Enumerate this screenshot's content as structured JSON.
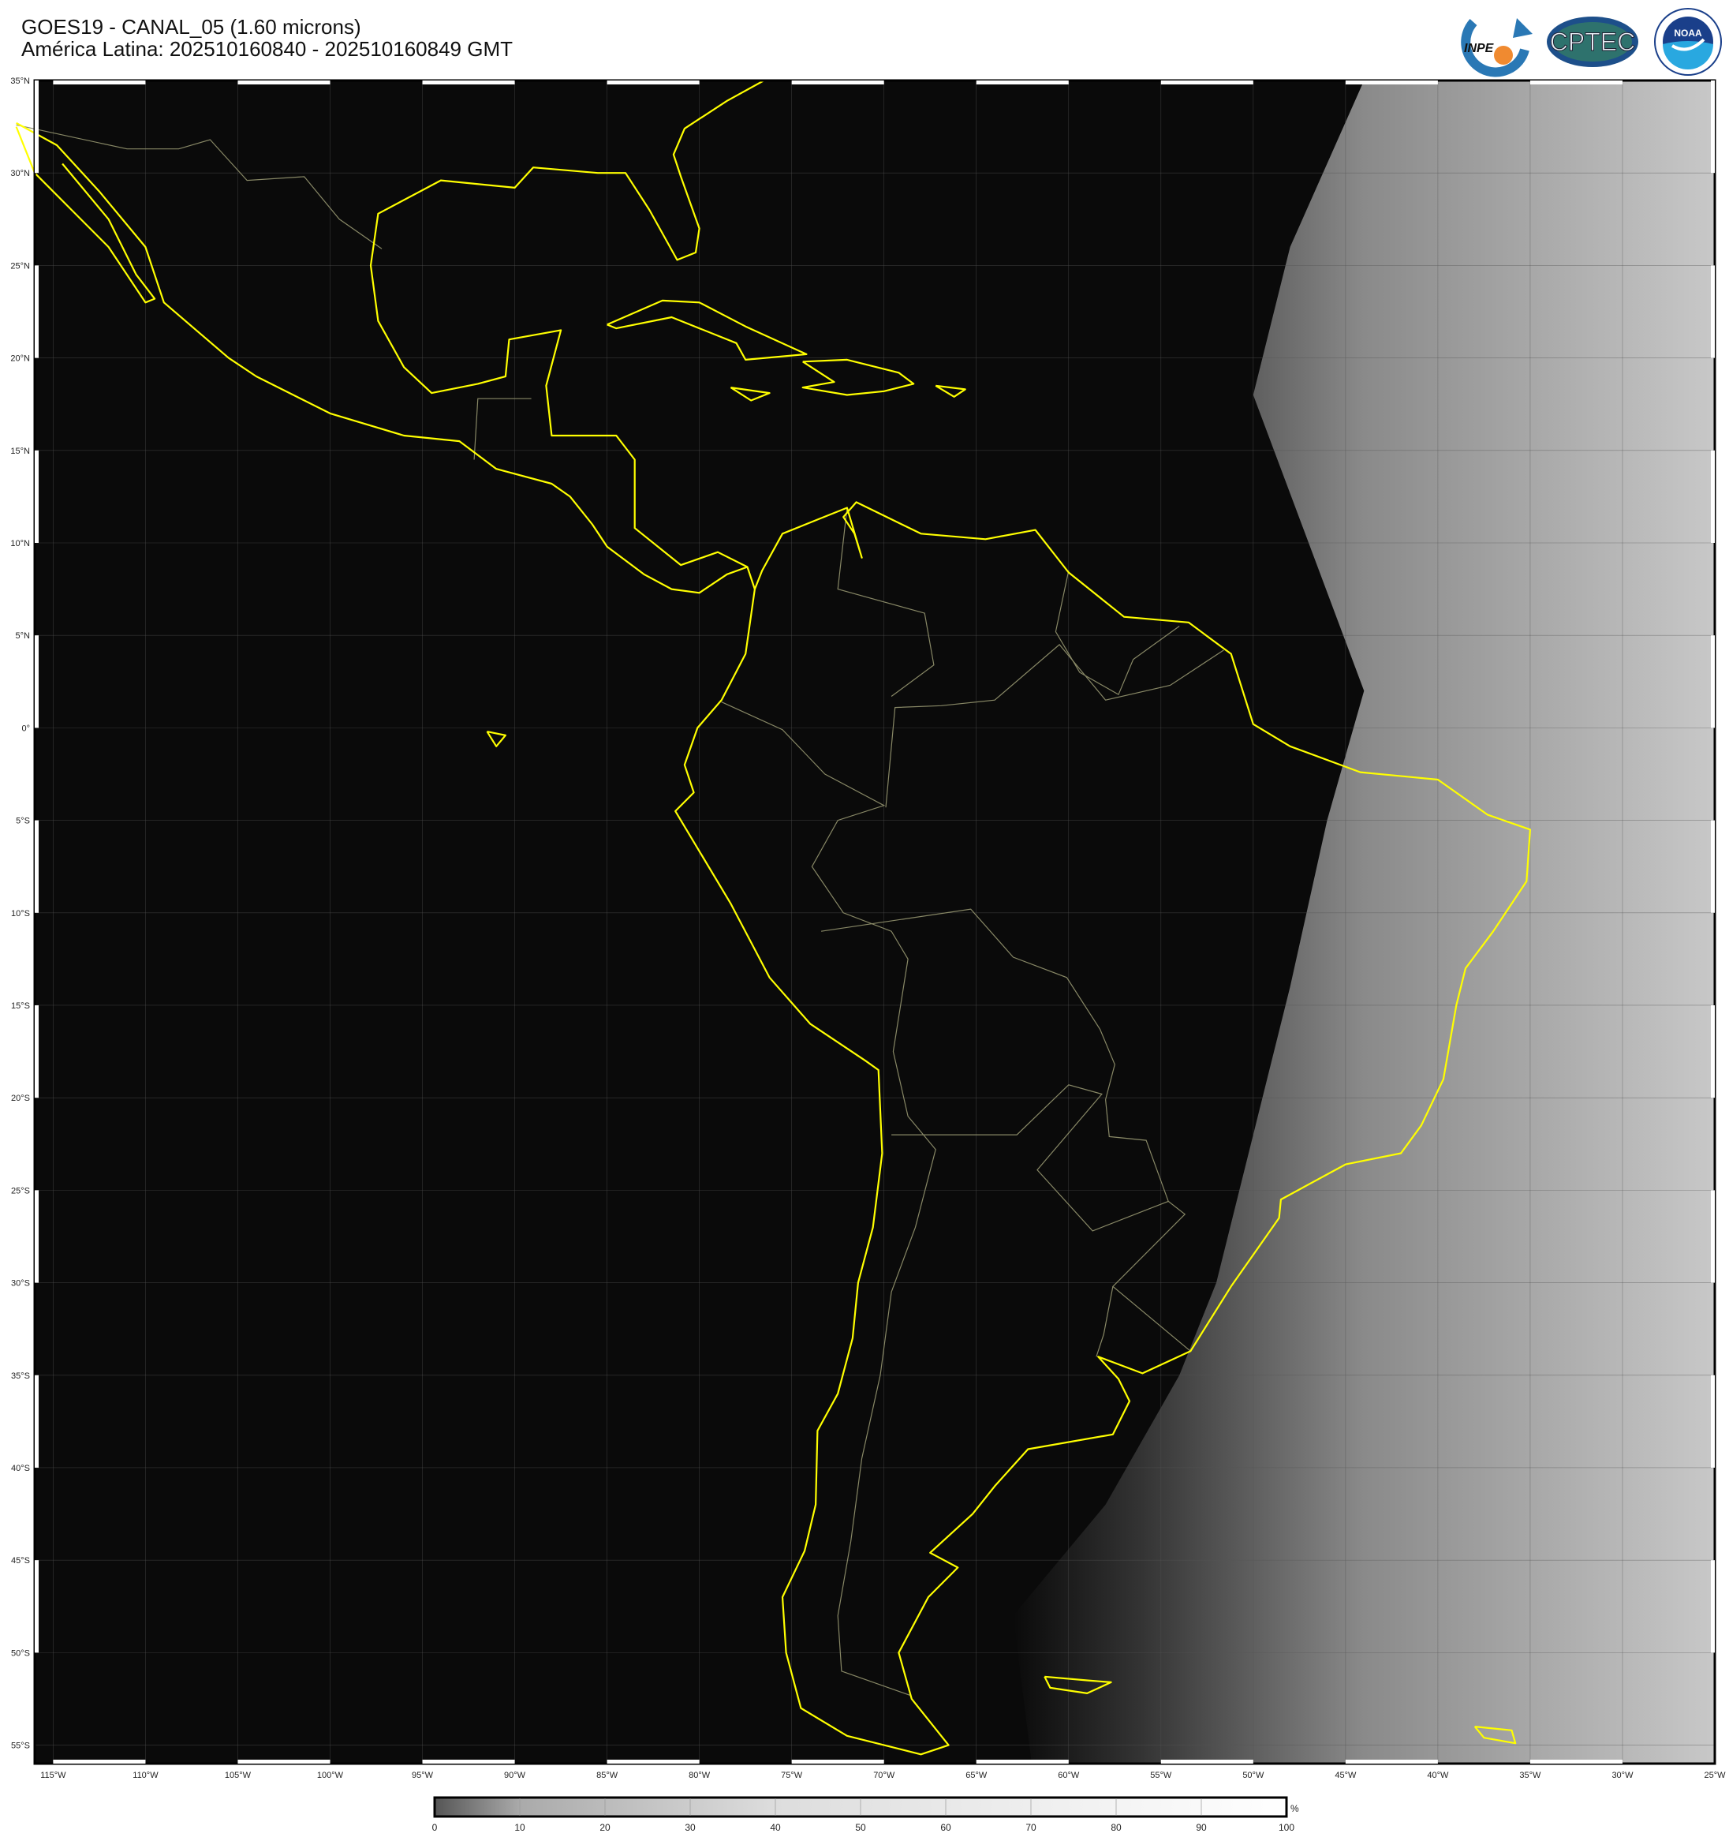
{
  "header": {
    "title": "GOES19 - CANAL_05 (1.60 microns)",
    "subtitle": "América Latina: 202510160840 - 202510160849 GMT"
  },
  "logos": [
    {
      "name": "INPE",
      "text": "INPE"
    },
    {
      "name": "CPTEC",
      "text": "CPTEC"
    },
    {
      "name": "NOAA",
      "text": "NOAA"
    }
  ],
  "map": {
    "lon_range": [
      -116,
      -25
    ],
    "lat_range": [
      -56,
      35
    ],
    "coastline_color": "#ffff00",
    "border_color": "#888866",
    "background_color": "#0a0a0a",
    "lat_labels": [
      "35°N",
      "30°N",
      "25°N",
      "20°N",
      "15°N",
      "10°N",
      "5°N",
      "0°",
      "5°S",
      "10°S",
      "15°S",
      "20°S",
      "25°S",
      "30°S",
      "35°S",
      "40°S",
      "45°S",
      "50°S",
      "55°S"
    ],
    "lat_values": [
      35,
      30,
      25,
      20,
      15,
      10,
      5,
      0,
      -5,
      -10,
      -15,
      -20,
      -25,
      -30,
      -35,
      -40,
      -45,
      -50,
      -55
    ],
    "lon_labels": [
      "115°W",
      "110°W",
      "105°W",
      "100°W",
      "95°W",
      "90°W",
      "85°W",
      "80°W",
      "75°W",
      "70°W",
      "65°W",
      "60°W",
      "55°W",
      "50°W",
      "45°W",
      "40°W",
      "35°W",
      "30°W",
      "25°W"
    ],
    "lon_values": [
      -115,
      -110,
      -105,
      -100,
      -95,
      -90,
      -85,
      -80,
      -75,
      -70,
      -65,
      -60,
      -55,
      -50,
      -45,
      -40,
      -35,
      -30,
      -25
    ]
  },
  "colorbar": {
    "ticks": [
      "0",
      "10",
      "20",
      "30",
      "40",
      "50",
      "60",
      "70",
      "80",
      "90",
      "100"
    ],
    "unit": "%",
    "min_color": "#555555",
    "max_color": "#ffffff"
  }
}
